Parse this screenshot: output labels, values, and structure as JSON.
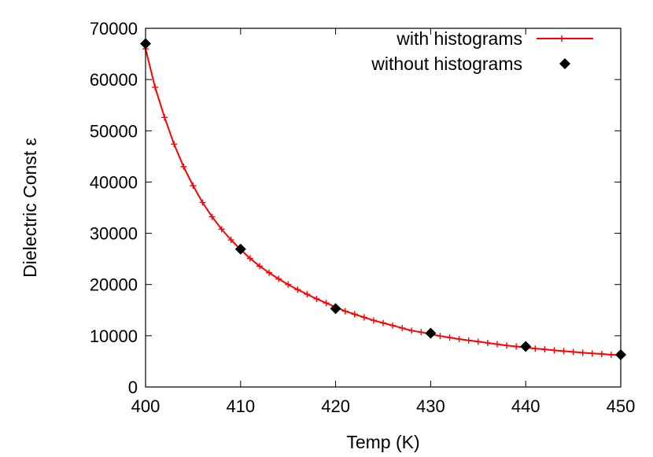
{
  "chart_data": {
    "type": "line",
    "title": "",
    "xlabel": "Temp (K)",
    "ylabel": "Dielectric Const ε",
    "xlim": [
      400,
      450
    ],
    "ylim": [
      0,
      70000
    ],
    "xticks": [
      400,
      410,
      420,
      430,
      440,
      450
    ],
    "yticks": [
      0,
      10000,
      20000,
      30000,
      40000,
      50000,
      60000,
      70000
    ],
    "grid": false,
    "legend_position": "top-right",
    "series": [
      {
        "name": "with histograms",
        "style": "line-with-plus-markers",
        "color": "#ff0000",
        "x": [
          400,
          401,
          402,
          403,
          404,
          405,
          406,
          407,
          408,
          409,
          410,
          411,
          412,
          413,
          414,
          415,
          416,
          417,
          418,
          419,
          420,
          421,
          422,
          423,
          424,
          425,
          426,
          427,
          428,
          429,
          430,
          431,
          432,
          433,
          434,
          435,
          436,
          437,
          438,
          439,
          440,
          441,
          442,
          443,
          444,
          445,
          446,
          447,
          448,
          449,
          450
        ],
        "y": [
          66000,
          58500,
          52600,
          47400,
          43000,
          39300,
          36000,
          33200,
          30800,
          28700,
          26800,
          25100,
          23600,
          22300,
          21100,
          20000,
          19000,
          18100,
          17200,
          16400,
          15600,
          14800,
          14200,
          13600,
          13000,
          12500,
          12000,
          11500,
          11000,
          10700,
          10300,
          9950,
          9650,
          9350,
          9100,
          8850,
          8600,
          8350,
          8100,
          7900,
          7700,
          7500,
          7350,
          7150,
          7000,
          6850,
          6700,
          6550,
          6450,
          6300,
          6200
        ]
      },
      {
        "name": "without histograms",
        "style": "diamond-markers",
        "color": "#000000",
        "x": [
          400,
          410,
          420,
          430,
          440,
          450
        ],
        "y": [
          67000,
          26900,
          15300,
          10500,
          7900,
          6300
        ]
      }
    ]
  }
}
